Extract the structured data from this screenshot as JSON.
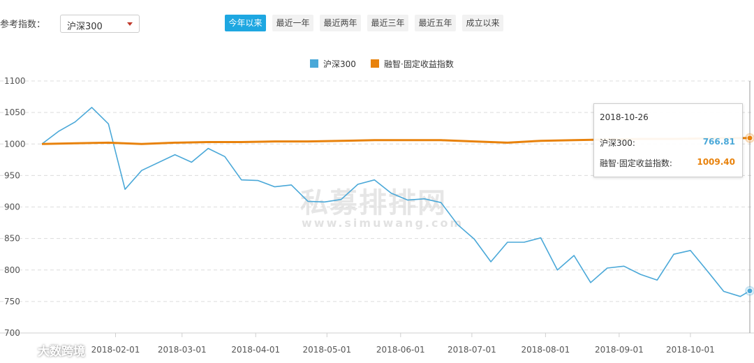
{
  "filter": {
    "label": "参考指数：",
    "selected": "沪深300"
  },
  "tabs": [
    {
      "label": "今年以来",
      "active": true
    },
    {
      "label": "最近一年",
      "active": false
    },
    {
      "label": "最近两年",
      "active": false
    },
    {
      "label": "最近三年",
      "active": false
    },
    {
      "label": "最近五年",
      "active": false
    },
    {
      "label": "成立以来",
      "active": false
    }
  ],
  "colors": {
    "accent": "#1ea7e1",
    "series1": "#4aa8d8",
    "series2": "#e8820c"
  },
  "chart_data": {
    "type": "line",
    "title": "",
    "xlabel": "",
    "ylabel": "",
    "ylim": [
      700,
      1100
    ],
    "yticks": [
      700,
      750,
      800,
      850,
      900,
      950,
      1000,
      1050,
      1100
    ],
    "xtick_labels": [
      "2018-02-01",
      "2018-03-01",
      "2018-04-01",
      "2018-05-01",
      "2018-06-01",
      "2018-07-01",
      "2018-08-01",
      "2018-09-01",
      "2018-10-01"
    ],
    "grid": true,
    "legend": "top-center",
    "series": [
      {
        "name": "沪深300",
        "color": "#4aa8d8",
        "points": [
          [
            "2018-01-01",
            1000
          ],
          [
            "2018-01-08",
            1020
          ],
          [
            "2018-01-15",
            1035
          ],
          [
            "2018-01-22",
            1058
          ],
          [
            "2018-01-29",
            1032
          ],
          [
            "2018-02-05",
            928
          ],
          [
            "2018-02-12",
            958
          ],
          [
            "2018-02-26",
            983
          ],
          [
            "2018-03-05",
            971
          ],
          [
            "2018-03-12",
            993
          ],
          [
            "2018-03-19",
            980
          ],
          [
            "2018-03-26",
            943
          ],
          [
            "2018-04-02",
            942
          ],
          [
            "2018-04-09",
            932
          ],
          [
            "2018-04-16",
            935
          ],
          [
            "2018-04-23",
            909
          ],
          [
            "2018-04-30",
            908
          ],
          [
            "2018-05-07",
            912
          ],
          [
            "2018-05-14",
            936
          ],
          [
            "2018-05-21",
            943
          ],
          [
            "2018-05-28",
            922
          ],
          [
            "2018-06-04",
            911
          ],
          [
            "2018-06-11",
            913
          ],
          [
            "2018-06-18",
            907
          ],
          [
            "2018-06-25",
            872
          ],
          [
            "2018-07-02",
            849
          ],
          [
            "2018-07-09",
            813
          ],
          [
            "2018-07-16",
            844
          ],
          [
            "2018-07-23",
            844
          ],
          [
            "2018-07-30",
            851
          ],
          [
            "2018-08-06",
            800
          ],
          [
            "2018-08-13",
            823
          ],
          [
            "2018-08-20",
            780
          ],
          [
            "2018-08-27",
            803
          ],
          [
            "2018-09-03",
            806
          ],
          [
            "2018-09-10",
            793
          ],
          [
            "2018-09-17",
            784
          ],
          [
            "2018-09-24",
            825
          ],
          [
            "2018-10-01",
            831
          ],
          [
            "2018-10-08",
            799
          ],
          [
            "2018-10-15",
            766
          ],
          [
            "2018-10-22",
            758
          ],
          [
            "2018-10-26",
            766.81
          ]
        ]
      },
      {
        "name": "融智·固定收益指数",
        "color": "#e8820c",
        "points": [
          [
            "2018-01-01",
            1000
          ],
          [
            "2018-01-15",
            1001
          ],
          [
            "2018-01-29",
            1002
          ],
          [
            "2018-02-12",
            1000
          ],
          [
            "2018-02-26",
            1002
          ],
          [
            "2018-03-12",
            1003
          ],
          [
            "2018-03-26",
            1003
          ],
          [
            "2018-04-09",
            1004
          ],
          [
            "2018-04-23",
            1004
          ],
          [
            "2018-05-07",
            1005
          ],
          [
            "2018-05-21",
            1006
          ],
          [
            "2018-06-04",
            1006
          ],
          [
            "2018-06-18",
            1006
          ],
          [
            "2018-07-02",
            1004
          ],
          [
            "2018-07-16",
            1002
          ],
          [
            "2018-07-30",
            1005
          ],
          [
            "2018-08-13",
            1006
          ],
          [
            "2018-08-27",
            1007
          ],
          [
            "2018-09-10",
            1008
          ],
          [
            "2018-09-24",
            1008
          ],
          [
            "2018-10-08",
            1009
          ],
          [
            "2018-10-26",
            1009.4
          ]
        ]
      }
    ],
    "tooltip": {
      "date": "2018-10-26",
      "rows": [
        {
          "label": "沪深300:",
          "value": "766.81"
        },
        {
          "label": "融智·固定收益指数:",
          "value": "1009.40"
        }
      ]
    }
  },
  "watermark": {
    "text": "私募排排网",
    "url": "www.simuwang.com"
  },
  "badge": {
    "text": "大数跨境"
  }
}
